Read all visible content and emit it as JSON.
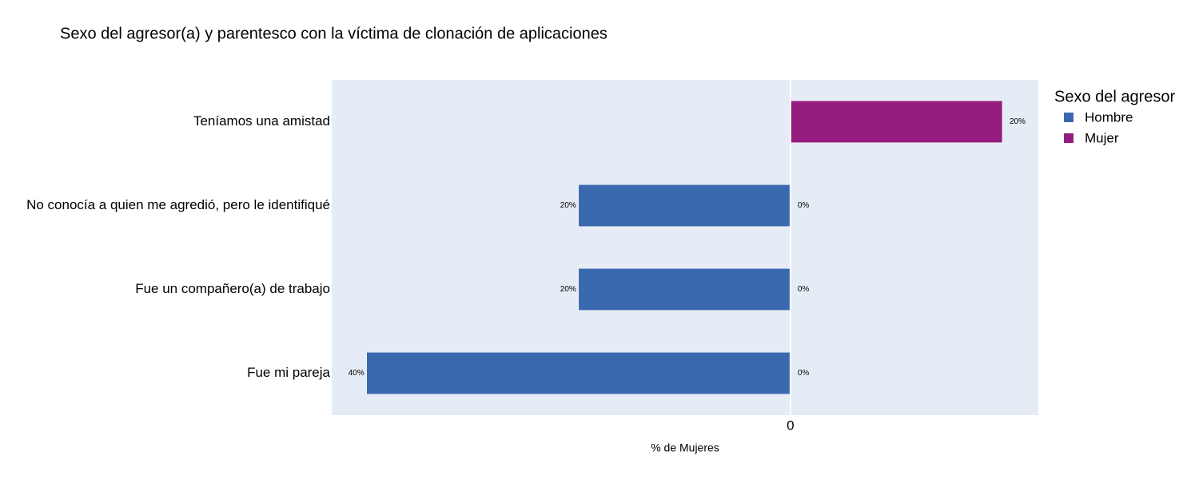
{
  "chart_data": {
    "type": "bar",
    "orientation": "horizontal",
    "title": "Sexo del agresor(a) y parentesco con la víctima de clonación de aplicaciones",
    "x_label": "% de Mujeres",
    "legend_title": "Sexo del agresor",
    "categories": [
      "Teníamos una amistad",
      "No conocía a quien me agredió, pero le identifiqué",
      "Fue un compañero(a) de trabajo",
      "Fue mi pareja"
    ],
    "series": [
      {
        "name": "Hombre",
        "color": "#3a68ae",
        "values": [
          null,
          -20,
          -20,
          -40
        ],
        "value_labels": [
          null,
          "20%",
          "20%",
          "40%"
        ]
      },
      {
        "name": "Mujer",
        "color": "#941c7f",
        "values": [
          20,
          0,
          0,
          0
        ],
        "value_labels": [
          "20%",
          "0%",
          "0%",
          "0%"
        ]
      }
    ],
    "xlim": [
      -43.3,
      23.4
    ],
    "xticks": [
      0
    ],
    "zeroline": true
  }
}
